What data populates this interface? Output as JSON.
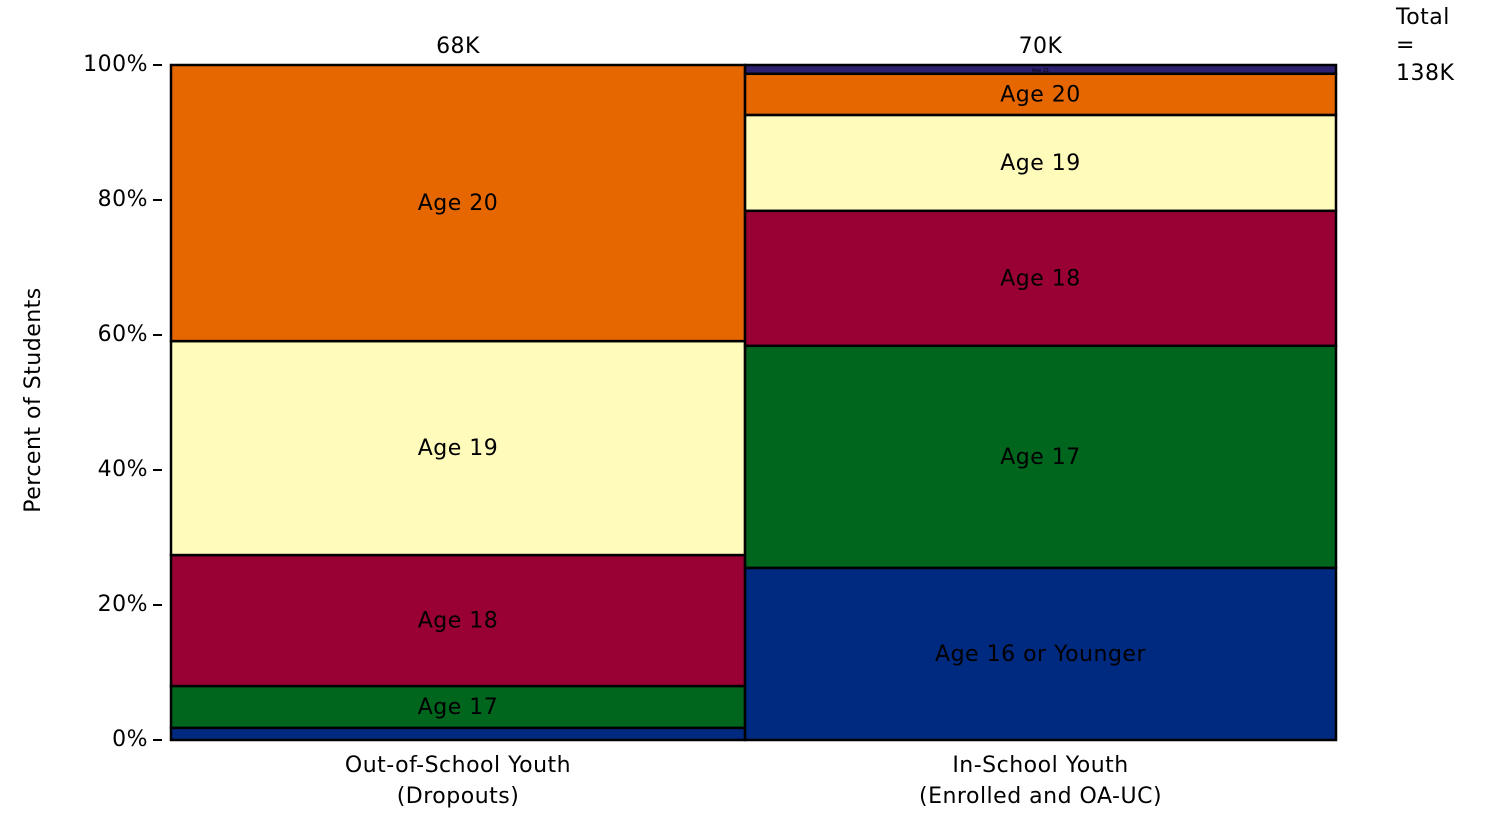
{
  "chart_data": {
    "type": "mekko",
    "y_label": "Percent of Students",
    "annotation": "Total = 138K",
    "categories": [
      "Out-of-School Youth\n(Dropouts)",
      "In-School Youth\n(Enrolled and OA-UC)"
    ],
    "widths": [
      68,
      70
    ],
    "width_labels": [
      "68K",
      "70K"
    ],
    "series": [
      {
        "name": "Age 16 or Younger",
        "color": "#002a80",
        "values": [
          1.8,
          25.5
        ]
      },
      {
        "name": "Age 17",
        "color": "#00661e",
        "values": [
          6.2,
          32.9
        ]
      },
      {
        "name": "Age 18",
        "color": "#990033",
        "values": [
          19.4,
          20.0
        ]
      },
      {
        "name": "Age 19",
        "color": "#fffbbb",
        "values": [
          31.7,
          14.2
        ]
      },
      {
        "name": "Age 20",
        "color": "#e66700",
        "values": [
          40.9,
          6.1
        ]
      },
      {
        "name": "Age 21",
        "color": "#2e2070",
        "values": [
          0,
          1.3
        ]
      }
    ],
    "ylim": [
      0,
      100
    ],
    "yticks": [
      {
        "value": 0,
        "label": "0%"
      },
      {
        "value": 20,
        "label": "20%"
      },
      {
        "value": 40,
        "label": "40%"
      },
      {
        "value": 60,
        "label": "60%"
      },
      {
        "value": 80,
        "label": "80%"
      },
      {
        "value": 100,
        "label": "100%"
      }
    ]
  }
}
